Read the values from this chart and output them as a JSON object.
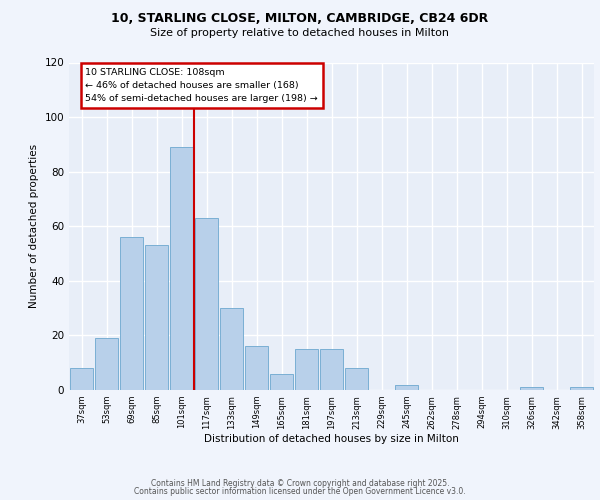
{
  "title_line1": "10, STARLING CLOSE, MILTON, CAMBRIDGE, CB24 6DR",
  "title_line2": "Size of property relative to detached houses in Milton",
  "xlabel": "Distribution of detached houses by size in Milton",
  "ylabel": "Number of detached properties",
  "bar_labels": [
    "37sqm",
    "53sqm",
    "69sqm",
    "85sqm",
    "101sqm",
    "117sqm",
    "133sqm",
    "149sqm",
    "165sqm",
    "181sqm",
    "197sqm",
    "213sqm",
    "229sqm",
    "245sqm",
    "262sqm",
    "278sqm",
    "294sqm",
    "310sqm",
    "326sqm",
    "342sqm",
    "358sqm"
  ],
  "bar_values": [
    8,
    19,
    56,
    53,
    89,
    63,
    30,
    16,
    6,
    15,
    15,
    8,
    0,
    2,
    0,
    0,
    0,
    0,
    1,
    0,
    1
  ],
  "bar_color": "#b8d0ea",
  "bar_edgecolor": "#7aafd4",
  "annotation_line1": "10 STARLING CLOSE: 108sqm",
  "annotation_line2": "← 46% of detached houses are smaller (168)",
  "annotation_line3": "54% of semi-detached houses are larger (198) →",
  "vline_x": 4.5,
  "annotation_box_facecolor": "#ffffff",
  "annotation_box_edgecolor": "#cc0000",
  "vline_color": "#cc0000",
  "background_color": "#e8eef8",
  "grid_color": "#ffffff",
  "ylim": [
    0,
    120
  ],
  "yticks": [
    0,
    20,
    40,
    60,
    80,
    100,
    120
  ],
  "footer_line1": "Contains HM Land Registry data © Crown copyright and database right 2025.",
  "footer_line2": "Contains public sector information licensed under the Open Government Licence v3.0."
}
